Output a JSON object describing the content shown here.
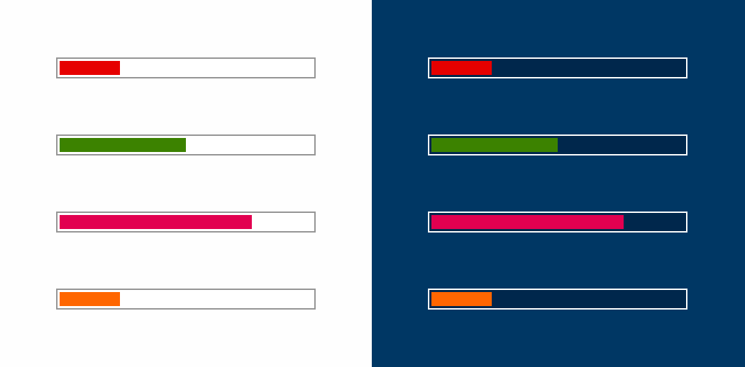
{
  "colors": {
    "light_panel_background": "#fefefe",
    "light_track_border": "#949494",
    "light_track_background": "#ffffff",
    "dark_panel_background": "#003764",
    "dark_track_border": "#ffffff",
    "dark_track_background": "#00274c"
  },
  "panels": [
    {
      "theme": "light",
      "bars": [
        {
          "name": "red",
          "color": "#e60000",
          "progress": 0.24
        },
        {
          "name": "green",
          "color": "#3c8200",
          "progress": 0.5
        },
        {
          "name": "pink",
          "color": "#e20050",
          "progress": 0.76
        },
        {
          "name": "orange",
          "color": "#ff6600",
          "progress": 0.24
        }
      ]
    },
    {
      "theme": "dark",
      "bars": [
        {
          "name": "red",
          "color": "#e60000",
          "progress": 0.24
        },
        {
          "name": "green",
          "color": "#3c8200",
          "progress": 0.5
        },
        {
          "name": "pink",
          "color": "#e20050",
          "progress": 0.76
        },
        {
          "name": "orange",
          "color": "#ff6600",
          "progress": 0.24
        }
      ]
    }
  ]
}
